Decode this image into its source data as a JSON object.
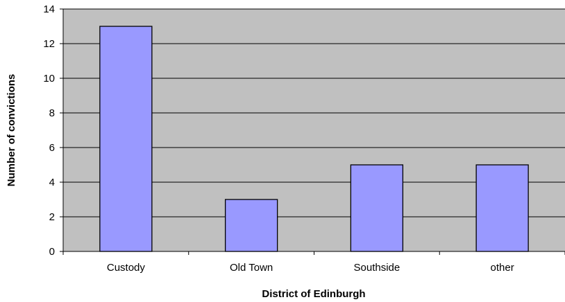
{
  "chart_data": {
    "type": "bar",
    "title": "",
    "xlabel": "District of Edinburgh",
    "ylabel": "Number of convictions",
    "categories": [
      "Custody",
      "Old Town",
      "Southside",
      "other"
    ],
    "values": [
      13,
      3,
      5,
      5
    ],
    "ylim": [
      0,
      14
    ],
    "yticks": [
      0,
      2,
      4,
      6,
      8,
      10,
      12,
      14
    ],
    "grid": true,
    "legend": "none",
    "colors": {
      "plot_background": "#c0c0c0",
      "bar_fill": "#9999ff",
      "bar_stroke": "#000000",
      "gridline": "#000000"
    }
  }
}
